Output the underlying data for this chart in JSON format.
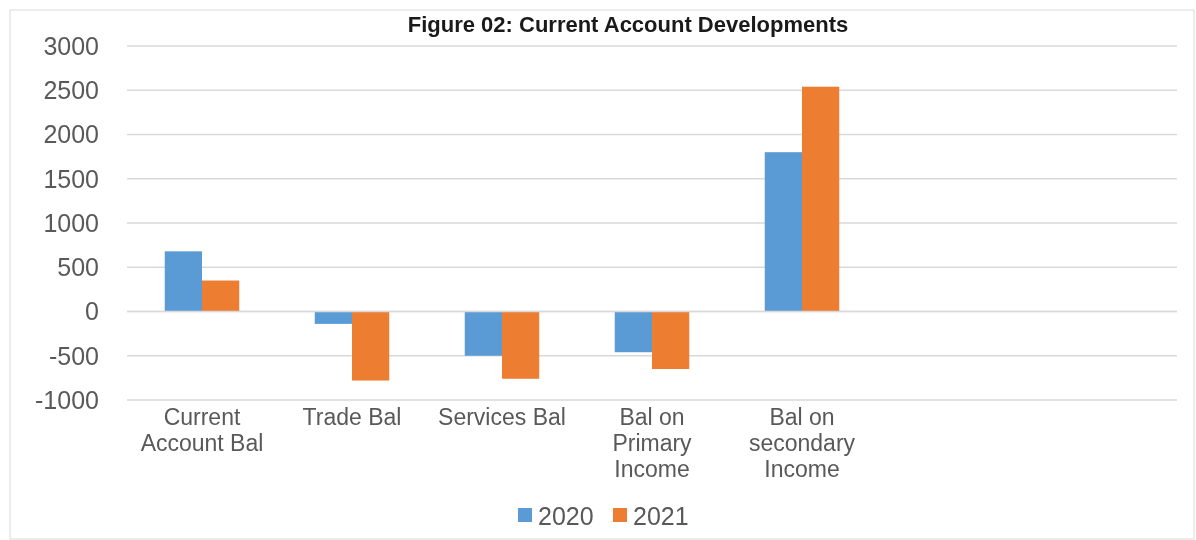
{
  "chart_data": {
    "type": "bar",
    "title": "Figure 02: Current Account Developments",
    "categories": [
      "Current Account Bal",
      "Trade Bal",
      "Services Bal",
      "Bal on Primary Income",
      "Bal on secondary Income",
      null,
      null
    ],
    "series": [
      {
        "name": "2020",
        "color": "#5b9bd5",
        "values": [
          680,
          -140,
          -500,
          -460,
          1800,
          null,
          null
        ]
      },
      {
        "name": "2021",
        "color": "#ed7d31",
        "values": [
          350,
          -780,
          -760,
          -650,
          2540,
          null,
          null
        ]
      }
    ],
    "ylim": [
      -1000,
      3000
    ],
    "yticks": [
      -1000,
      -500,
      0,
      500,
      1000,
      1500,
      2000,
      2500,
      3000
    ],
    "grid": "y",
    "legend": "bottom"
  }
}
